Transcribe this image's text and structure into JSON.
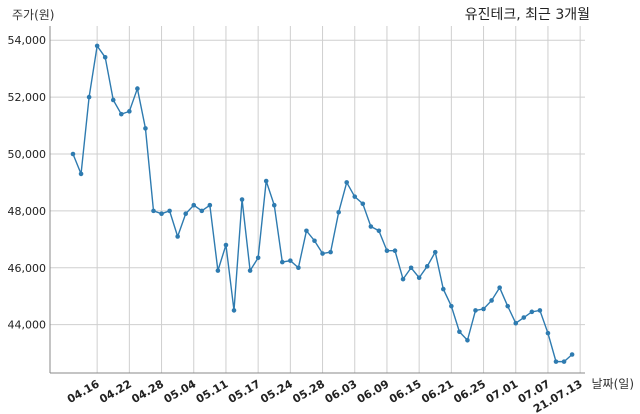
{
  "chart_data": {
    "type": "line",
    "title": "유진테크, 최근 3개월",
    "ylabel": "주가(원)",
    "xlabel": "날짜(일)",
    "ylim": [
      42300,
      54500
    ],
    "yticks": [
      44000,
      46000,
      48000,
      50000,
      52000,
      54000
    ],
    "ytick_labels": [
      "44,000",
      "46,000",
      "48,000",
      "50,000",
      "52,000",
      "54,000"
    ],
    "xtick_labels": [
      "04.16",
      "04.22",
      "04.28",
      "05.04",
      "05.11",
      "05.17",
      "05.24",
      "05.28",
      "06.03",
      "06.09",
      "06.15",
      "06.21",
      "06.25",
      "07.01",
      "07.07",
      "21.07.13"
    ],
    "xtick_index": [
      3,
      7,
      11,
      15,
      19,
      23,
      27,
      31,
      35,
      39,
      43,
      47,
      51,
      55,
      59,
      63
    ],
    "grid": true,
    "line_color": "#2e7bb0",
    "series": [
      {
        "values": [
          50000,
          49300,
          52000,
          53800,
          53400,
          51900,
          51400,
          51500,
          52300,
          50900,
          48000,
          47900,
          48000,
          47100,
          47900,
          48200,
          48000,
          48200,
          45900,
          46800,
          44500,
          48400,
          45900,
          46350,
          49050,
          48200,
          46200,
          46250,
          46000,
          47300,
          46950,
          46500,
          46550,
          47950,
          49000,
          48500,
          48250,
          47450,
          47300,
          46600,
          46600,
          45600,
          46000,
          45650,
          46050,
          46550,
          45250,
          44650,
          43750,
          43450,
          44500,
          44550,
          44850,
          45300,
          44650,
          44050,
          44250,
          44450,
          44500,
          43700,
          42700,
          42700,
          42950
        ]
      }
    ]
  }
}
